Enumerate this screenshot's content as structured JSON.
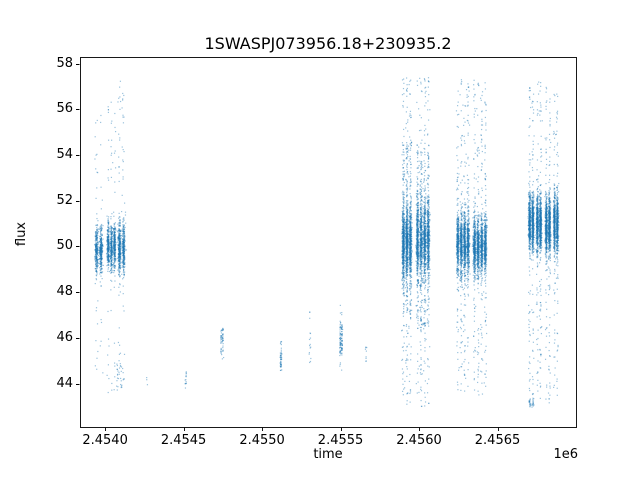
{
  "figure": {
    "title": "1SWASPJ073956.18+230935.2",
    "xlabel": "time",
    "ylabel": "flux",
    "offset_text": "1e6"
  },
  "chart_data": {
    "type": "scatter",
    "title": "1SWASPJ073956.18+230935.2",
    "xlabel": "time",
    "ylabel": "flux",
    "x_axis_multiplier_label": "1e6",
    "xlim": [
      2453840,
      2457000
    ],
    "ylim": [
      42.1,
      58.25
    ],
    "xticks": [
      2454000,
      2454500,
      2455000,
      2455500,
      2456000,
      2456500
    ],
    "xtick_labels": [
      "2.4540",
      "2.4545",
      "2.4550",
      "2.4555",
      "2.4560",
      "2.4565"
    ],
    "yticks": [
      44,
      46,
      48,
      50,
      52,
      54,
      56,
      58
    ],
    "ytick_labels": [
      "44",
      "46",
      "48",
      "50",
      "52",
      "54",
      "56",
      "58"
    ],
    "grid": false,
    "legend": "none",
    "background": "#ffffff",
    "point_color": "#1f77b4",
    "point_alpha": 0.45,
    "marker_size": 1.2,
    "seed": 7,
    "clusters": [
      {
        "x_center": 2453960,
        "x_halfwidth": 28,
        "stripes": 2,
        "core": {
          "mean": 49.85,
          "sd": 0.5,
          "n": 550
        },
        "tails": [
          {
            "min": 44.3,
            "max": 56.2,
            "n": 45
          }
        ]
      },
      {
        "x_center": 2454040,
        "x_halfwidth": 30,
        "stripes": 3,
        "core": {
          "mean": 50.0,
          "sd": 0.5,
          "n": 750
        },
        "tails": [
          {
            "min": 43.6,
            "max": 56.5,
            "n": 55
          }
        ]
      },
      {
        "x_center": 2454105,
        "x_halfwidth": 26,
        "stripes": 2,
        "core": {
          "mean": 49.9,
          "sd": 0.55,
          "n": 650
        },
        "tails": [
          {
            "min": 43.6,
            "max": 57.5,
            "n": 70
          }
        ]
      },
      {
        "x_center": 2454090,
        "x_halfwidth": 22,
        "stripes": 2,
        "core": null,
        "tails": [
          {
            "min": 43.7,
            "max": 44.9,
            "n": 26
          }
        ]
      },
      {
        "x_center": 2454265,
        "x_halfwidth": 6,
        "stripes": 1,
        "core": null,
        "tails": [
          {
            "min": 43.9,
            "max": 44.3,
            "n": 3
          }
        ]
      },
      {
        "x_center": 2454515,
        "x_halfwidth": 8,
        "stripes": 1,
        "core": null,
        "tails": [
          {
            "min": 43.75,
            "max": 44.55,
            "n": 14
          }
        ]
      },
      {
        "x_center": 2454745,
        "x_halfwidth": 10,
        "stripes": 2,
        "core": {
          "mean": 45.9,
          "sd": 0.3,
          "n": 45
        },
        "tails": [
          {
            "min": 45.05,
            "max": 46.6,
            "n": 10
          }
        ]
      },
      {
        "x_center": 2455120,
        "x_halfwidth": 8,
        "stripes": 1,
        "core": {
          "mean": 45.1,
          "sd": 0.28,
          "n": 40
        },
        "tails": [
          {
            "min": 44.5,
            "max": 45.85,
            "n": 8
          }
        ]
      },
      {
        "x_center": 2455305,
        "x_halfwidth": 10,
        "stripes": 1,
        "core": null,
        "tails": [
          {
            "min": 44.9,
            "max": 47.35,
            "n": 16
          }
        ]
      },
      {
        "x_center": 2455503,
        "x_halfwidth": 10,
        "stripes": 2,
        "core": {
          "mean": 45.9,
          "sd": 0.45,
          "n": 90
        },
        "tails": [
          {
            "min": 44.7,
            "max": 47.05,
            "n": 20
          }
        ]
      },
      {
        "x_center": 2455662,
        "x_halfwidth": 6,
        "stripes": 1,
        "core": null,
        "tails": [
          {
            "min": 44.95,
            "max": 45.6,
            "n": 9
          }
        ]
      },
      {
        "x_center": 2455923,
        "x_halfwidth": 34,
        "stripes": 3,
        "core": {
          "mean": 50.2,
          "sd": 0.8,
          "n": 1400
        },
        "tails": [
          {
            "min": 47.0,
            "max": 54.5,
            "n": 200
          },
          {
            "min": 43.05,
            "max": 57.4,
            "n": 220
          }
        ]
      },
      {
        "x_center": 2456025,
        "x_halfwidth": 46,
        "stripes": 4,
        "core": {
          "mean": 50.3,
          "sd": 0.85,
          "n": 1600
        },
        "tails": [
          {
            "min": 46.5,
            "max": 54.5,
            "n": 250
          },
          {
            "min": 43.0,
            "max": 57.5,
            "n": 260
          }
        ]
      },
      {
        "x_center": 2456280,
        "x_halfwidth": 44,
        "stripes": 4,
        "core": {
          "mean": 50.1,
          "sd": 0.65,
          "n": 1500
        },
        "tails": [
          {
            "min": 43.6,
            "max": 57.3,
            "n": 240
          }
        ]
      },
      {
        "x_center": 2456388,
        "x_halfwidth": 46,
        "stripes": 4,
        "core": {
          "mean": 50.0,
          "sd": 0.6,
          "n": 1500
        },
        "tails": [
          {
            "min": 43.5,
            "max": 57.3,
            "n": 240
          }
        ]
      },
      {
        "x_center": 2456715,
        "x_halfwidth": 20,
        "stripes": 2,
        "core": {
          "mean": 51.0,
          "sd": 0.6,
          "n": 900
        },
        "tails": [
          {
            "min": 43.0,
            "max": 57.0,
            "n": 110
          },
          {
            "min": 42.95,
            "max": 43.4,
            "n": 30
          }
        ]
      },
      {
        "x_center": 2456764,
        "x_halfwidth": 20,
        "stripes": 2,
        "core": {
          "mean": 51.0,
          "sd": 0.6,
          "n": 900
        },
        "tails": [
          {
            "min": 43.2,
            "max": 57.2,
            "n": 110
          }
        ]
      },
      {
        "x_center": 2456821,
        "x_halfwidth": 20,
        "stripes": 2,
        "core": {
          "mean": 50.9,
          "sd": 0.65,
          "n": 900
        },
        "tails": [
          {
            "min": 43.1,
            "max": 57.0,
            "n": 110
          }
        ]
      },
      {
        "x_center": 2456872,
        "x_halfwidth": 18,
        "stripes": 2,
        "core": {
          "mean": 51.0,
          "sd": 0.6,
          "n": 800
        },
        "tails": [
          {
            "min": 43.2,
            "max": 56.8,
            "n": 100
          }
        ]
      }
    ]
  }
}
